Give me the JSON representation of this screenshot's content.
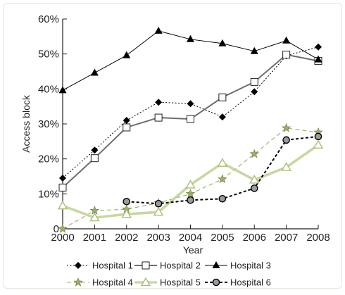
{
  "chart_data": {
    "type": "line",
    "title": "",
    "xlabel": "Year",
    "ylabel": "Access block",
    "ylim": [
      0,
      60
    ],
    "yticks": [
      "0",
      "10%",
      "20%",
      "30%",
      "40%",
      "50%",
      "60%"
    ],
    "x": [
      2000,
      2001,
      2002,
      2003,
      2004,
      2005,
      2006,
      2007,
      2008
    ],
    "grid": false,
    "legend_position": "bottom",
    "series": [
      {
        "name": "Hospital 1",
        "color": "#000000",
        "line": "dotted",
        "marker": "diamond",
        "values": [
          14.5,
          22.5,
          31,
          36.2,
          35.8,
          32,
          39.2,
          49.5,
          52
        ]
      },
      {
        "name": "Hospital 2",
        "color": "#6d6e70",
        "line": "solid",
        "marker": "square-open",
        "values": [
          11.8,
          20.2,
          29,
          31.8,
          31.4,
          37.6,
          42,
          49.8,
          48
        ]
      },
      {
        "name": "Hospital 3",
        "color": "#000000",
        "line": "solid",
        "marker": "triangle",
        "values": [
          39.6,
          44.6,
          49.6,
          56.6,
          54.2,
          53,
          50.8,
          53.8,
          48.4
        ]
      },
      {
        "name": "Hospital 4",
        "color": "#9aae6a",
        "line": "dashed",
        "marker": "star",
        "values": [
          0,
          5.2,
          5.6,
          7.4,
          10,
          14.2,
          21.4,
          28.8,
          27.6
        ]
      },
      {
        "name": "Hospital 5",
        "color": "#c7d8a0",
        "line": "thick",
        "marker": "triangle-open",
        "values": [
          6.6,
          3.2,
          4.2,
          4.8,
          12.6,
          18.8,
          14,
          17.6,
          24
        ]
      },
      {
        "name": "Hospital 6",
        "color": "#000000",
        "line": "dashed",
        "marker": "circle-grey",
        "values": [
          null,
          null,
          7.8,
          7.2,
          8.2,
          8.6,
          11.6,
          25.4,
          26.4
        ]
      }
    ]
  }
}
